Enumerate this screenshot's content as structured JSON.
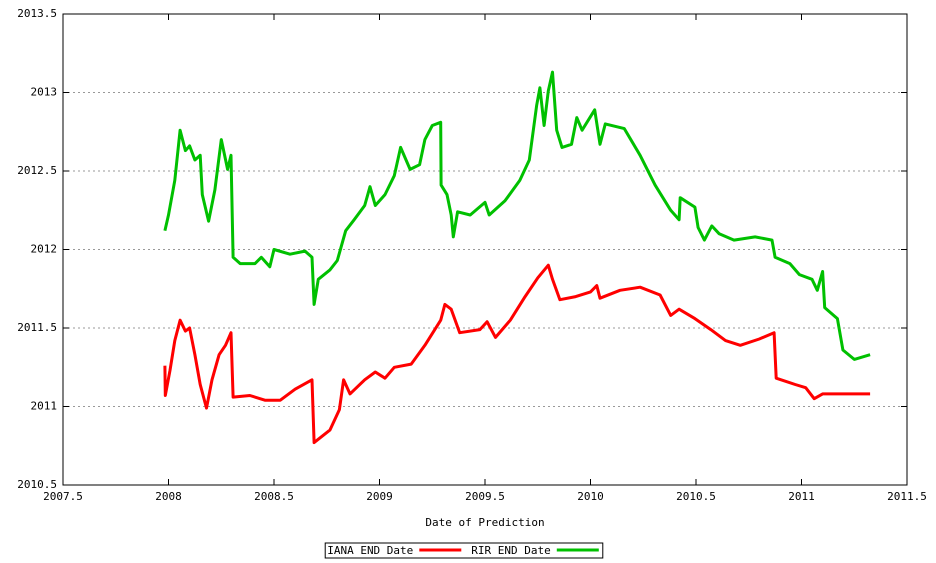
{
  "chart_data": {
    "type": "line",
    "x_label": "Date of Prediction",
    "xlim": [
      2007.5,
      2011.5
    ],
    "xticks": [
      2007.5,
      2008,
      2008.5,
      2009,
      2009.5,
      2010,
      2010.5,
      2011,
      2011.5
    ],
    "ylim": [
      2010.5,
      2013.5
    ],
    "yticks": [
      2010.5,
      2011,
      2011.5,
      2012,
      2012.5,
      2013,
      2013.5
    ],
    "grid": true,
    "legend": "bottom",
    "series": [
      {
        "name": "IANA END Date",
        "color": "#ff0000",
        "x": [
          2007.983,
          2007.985,
          2008.007,
          2008.03,
          2008.055,
          2008.08,
          2008.1,
          2008.125,
          2008.15,
          2008.18,
          2008.206,
          2008.24,
          2008.27,
          2008.296,
          2008.306,
          2008.386,
          2008.457,
          2008.53,
          2008.6,
          2008.68,
          2008.69,
          2008.765,
          2008.81,
          2008.83,
          2008.86,
          2008.93,
          2008.98,
          2009.026,
          2009.07,
          2009.15,
          2009.215,
          2009.29,
          2009.31,
          2009.34,
          2009.38,
          2009.476,
          2009.51,
          2009.55,
          2009.62,
          2009.69,
          2009.75,
          2009.8,
          2009.82,
          2009.855,
          2009.93,
          2010.0,
          2010.03,
          2010.045,
          2010.14,
          2010.235,
          2010.33,
          2010.38,
          2010.42,
          2010.495,
          2010.57,
          2010.64,
          2010.71,
          2010.8,
          2010.87,
          2010.88,
          2010.97,
          2011.02,
          2011.06,
          2011.1,
          2011.325
        ],
        "values": [
          2011.26,
          2011.07,
          2011.23,
          2011.42,
          2011.55,
          2011.48,
          2011.5,
          2011.33,
          2011.14,
          2010.99,
          2011.17,
          2011.33,
          2011.39,
          2011.47,
          2011.06,
          2011.07,
          2011.04,
          2011.04,
          2011.11,
          2011.17,
          2010.77,
          2010.85,
          2010.98,
          2011.17,
          2011.08,
          2011.17,
          2011.22,
          2011.18,
          2011.25,
          2011.27,
          2011.39,
          2011.55,
          2011.65,
          2011.62,
          2011.47,
          2011.49,
          2011.54,
          2011.44,
          2011.55,
          2011.7,
          2011.82,
          2011.9,
          2011.81,
          2011.68,
          2011.7,
          2011.73,
          2011.77,
          2011.69,
          2011.74,
          2011.76,
          2011.71,
          2011.58,
          2011.62,
          2011.56,
          2011.49,
          2011.42,
          2011.39,
          2011.43,
          2011.47,
          2011.18,
          2011.14,
          2011.12,
          2011.05,
          2011.08,
          2011.08
        ]
      },
      {
        "name": "RIR END Date",
        "color": "#00c000",
        "x": [
          2007.983,
          2008.0,
          2008.03,
          2008.055,
          2008.08,
          2008.1,
          2008.125,
          2008.15,
          2008.16,
          2008.19,
          2008.22,
          2008.25,
          2008.28,
          2008.296,
          2008.306,
          2008.34,
          2008.41,
          2008.44,
          2008.48,
          2008.5,
          2008.576,
          2008.647,
          2008.68,
          2008.69,
          2008.71,
          2008.765,
          2008.8,
          2008.84,
          2008.88,
          2008.93,
          2008.955,
          2008.98,
          2009.026,
          2009.07,
          2009.1,
          2009.145,
          2009.19,
          2009.215,
          2009.25,
          2009.29,
          2009.292,
          2009.32,
          2009.34,
          2009.35,
          2009.37,
          2009.43,
          2009.5,
          2009.52,
          2009.595,
          2009.665,
          2009.71,
          2009.745,
          2009.76,
          2009.78,
          2009.8,
          2009.82,
          2009.84,
          2009.865,
          2009.91,
          2009.935,
          2009.96,
          2010.02,
          2010.045,
          2010.07,
          2010.16,
          2010.235,
          2010.306,
          2010.38,
          2010.42,
          2010.425,
          2010.495,
          2010.51,
          2010.54,
          2010.575,
          2010.61,
          2010.68,
          2010.78,
          2010.86,
          2010.875,
          2010.945,
          2010.99,
          2011.05,
          2011.075,
          2011.1,
          2011.11,
          2011.17,
          2011.196,
          2011.25,
          2011.325
        ],
        "values": [
          2012.12,
          2012.22,
          2012.44,
          2012.76,
          2012.63,
          2012.66,
          2012.57,
          2012.6,
          2012.35,
          2012.18,
          2012.38,
          2012.7,
          2012.51,
          2012.6,
          2011.95,
          2011.91,
          2011.91,
          2011.95,
          2011.89,
          2012.0,
          2011.97,
          2011.99,
          2011.95,
          2011.65,
          2011.81,
          2011.87,
          2011.93,
          2012.12,
          2012.19,
          2012.28,
          2012.4,
          2012.28,
          2012.35,
          2012.47,
          2012.65,
          2012.51,
          2012.54,
          2012.7,
          2012.79,
          2012.81,
          2012.41,
          2012.35,
          2012.22,
          2012.08,
          2012.24,
          2012.22,
          2012.3,
          2012.22,
          2012.31,
          2012.44,
          2012.57,
          2012.92,
          2013.03,
          2012.79,
          2013.01,
          2013.13,
          2012.76,
          2012.65,
          2012.67,
          2012.84,
          2012.76,
          2012.89,
          2012.67,
          2012.8,
          2012.77,
          2012.6,
          2012.41,
          2012.25,
          2012.19,
          2012.33,
          2012.27,
          2012.14,
          2012.06,
          2012.15,
          2012.1,
          2012.06,
          2012.08,
          2012.06,
          2011.95,
          2011.91,
          2011.84,
          2011.81,
          2011.74,
          2011.86,
          2011.63,
          2011.56,
          2011.36,
          2011.3,
          2011.33
        ]
      }
    ]
  }
}
